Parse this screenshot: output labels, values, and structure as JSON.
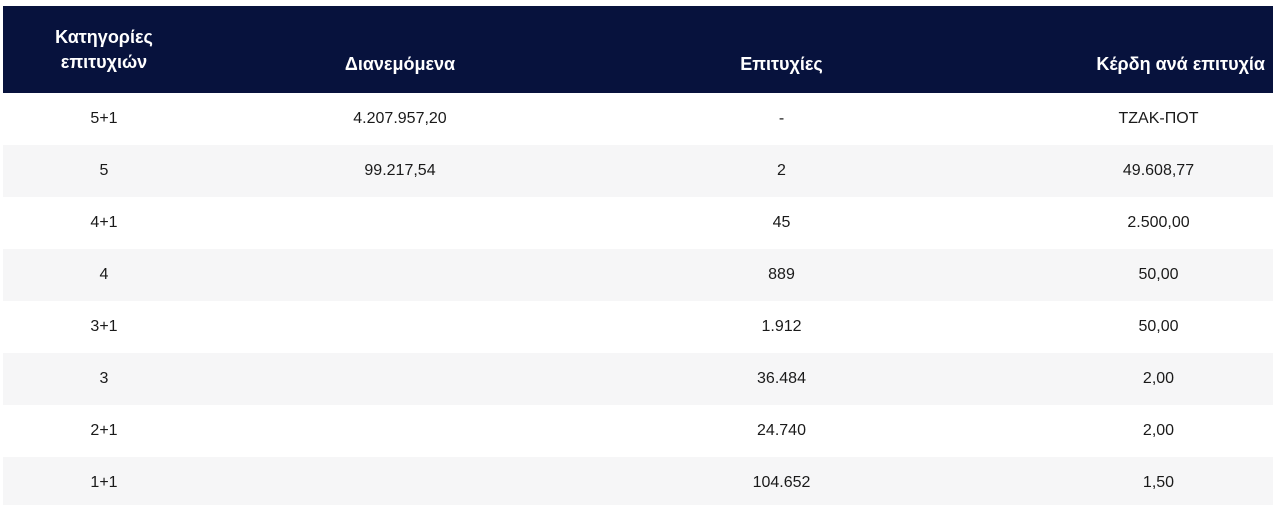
{
  "table": {
    "headers": {
      "category_line1": "Κατηγορίες",
      "category_line2": "επιτυχιών",
      "distributed": "Διανεμόμενα",
      "winners": "Επιτυχίες",
      "prize_per_winner": "Κέρδη ανά επιτυχία"
    },
    "rows": [
      {
        "category": "5+1",
        "distributed": "4.207.957,20",
        "winners": "-",
        "prize": "ΤΖΑΚ-ΠΟΤ"
      },
      {
        "category": "5",
        "distributed": "99.217,54",
        "winners": "2",
        "prize": "49.608,77"
      },
      {
        "category": "4+1",
        "distributed": "",
        "winners": "45",
        "prize": "2.500,00"
      },
      {
        "category": "4",
        "distributed": "",
        "winners": "889",
        "prize": "50,00"
      },
      {
        "category": "3+1",
        "distributed": "",
        "winners": "1.912",
        "prize": "50,00"
      },
      {
        "category": "3",
        "distributed": "",
        "winners": "36.484",
        "prize": "2,00"
      },
      {
        "category": "2+1",
        "distributed": "",
        "winners": "24.740",
        "prize": "2,00"
      },
      {
        "category": "1+1",
        "distributed": "",
        "winners": "104.652",
        "prize": "1,50"
      }
    ]
  },
  "colors": {
    "header_bg": "#07123d",
    "row_alt_bg": "#f6f6f7"
  }
}
